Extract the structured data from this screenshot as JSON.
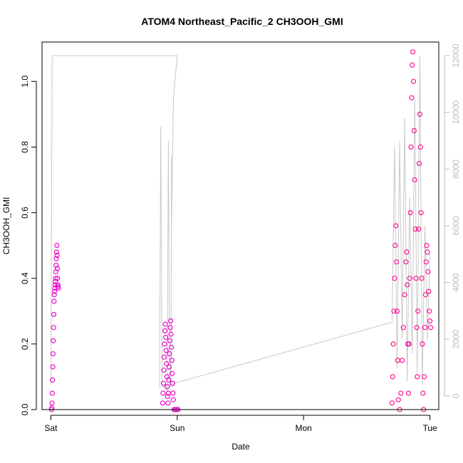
{
  "chart_data": {
    "type": "scatter",
    "title": "ATOM4 Northeast_Pacific_2 CH3OOH_GMI",
    "xlabel": "Date",
    "ylabel": "CH3OOH_GMI",
    "x_tick_labels": [
      "Sat",
      "Sun",
      "Mon",
      "Tue"
    ],
    "xlim_days": [
      -0.07,
      3.07
    ],
    "ylim": [
      0,
      1.12
    ],
    "y_ticks": [
      "0.0",
      "0.2",
      "0.4",
      "0.6",
      "0.8",
      "1.0"
    ],
    "y2_ticks": [
      "0",
      "2000",
      "4000",
      "6000",
      "8000",
      "10000",
      "12000"
    ],
    "y2lim": [
      -480,
      12480
    ],
    "grid": false,
    "colors": {
      "points": "#ff1493",
      "points_alt": "#e60dc8",
      "altitude_line": "#c8c8c8",
      "frame": "#000000"
    },
    "series": [
      {
        "marker": "open-circle",
        "points": [
          [
            0.005,
            0.0
          ],
          [
            0.007,
            0.005
          ],
          [
            0.009,
            0.02
          ],
          [
            0.011,
            0.05
          ],
          [
            0.013,
            0.09
          ],
          [
            0.015,
            0.13
          ],
          [
            0.017,
            0.17
          ],
          [
            0.019,
            0.21
          ],
          [
            0.021,
            0.25
          ],
          [
            0.023,
            0.29
          ],
          [
            0.025,
            0.33
          ],
          [
            0.027,
            0.35
          ],
          [
            0.029,
            0.36
          ],
          [
            0.031,
            0.37
          ],
          [
            0.033,
            0.38
          ],
          [
            0.035,
            0.39
          ],
          [
            0.037,
            0.4
          ],
          [
            0.039,
            0.42
          ],
          [
            0.041,
            0.44
          ],
          [
            0.043,
            0.46
          ],
          [
            0.045,
            0.48
          ],
          [
            0.047,
            0.5
          ],
          [
            0.049,
            0.47
          ],
          [
            0.051,
            0.43
          ],
          [
            0.053,
            0.4
          ],
          [
            0.055,
            0.38
          ],
          [
            0.057,
            0.375
          ],
          [
            0.059,
            0.37
          ],
          [
            0.885,
            0.02
          ],
          [
            0.888,
            0.05
          ],
          [
            0.891,
            0.08
          ],
          [
            0.894,
            0.12
          ],
          [
            0.897,
            0.16
          ],
          [
            0.9,
            0.2
          ],
          [
            0.903,
            0.24
          ],
          [
            0.906,
            0.26
          ],
          [
            0.909,
            0.22
          ],
          [
            0.912,
            0.18
          ],
          [
            0.915,
            0.14
          ],
          [
            0.918,
            0.1
          ],
          [
            0.921,
            0.07
          ],
          [
            0.924,
            0.04
          ],
          [
            0.927,
            0.02
          ],
          [
            0.93,
            0.05
          ],
          [
            0.933,
            0.09
          ],
          [
            0.936,
            0.13
          ],
          [
            0.939,
            0.17
          ],
          [
            0.942,
            0.21
          ],
          [
            0.945,
            0.25
          ],
          [
            0.948,
            0.27
          ],
          [
            0.951,
            0.23
          ],
          [
            0.954,
            0.19
          ],
          [
            0.957,
            0.15
          ],
          [
            0.96,
            0.11
          ],
          [
            0.963,
            0.08
          ],
          [
            0.966,
            0.05
          ],
          [
            0.969,
            0.03
          ],
          [
            0.975,
            0.0
          ],
          [
            0.985,
            0.0
          ],
          [
            0.995,
            0.0
          ],
          [
            1.005,
            0.0
          ],
          [
            2.7,
            0.02
          ],
          [
            2.705,
            0.1
          ],
          [
            2.71,
            0.2
          ],
          [
            2.715,
            0.3
          ],
          [
            2.72,
            0.4
          ],
          [
            2.725,
            0.5
          ],
          [
            2.73,
            0.56
          ],
          [
            2.735,
            0.45
          ],
          [
            2.74,
            0.3
          ],
          [
            2.745,
            0.15
          ],
          [
            2.75,
            0.03
          ],
          [
            2.76,
            0.0
          ],
          [
            2.77,
            0.05
          ],
          [
            2.78,
            0.15
          ],
          [
            2.79,
            0.25
          ],
          [
            2.8,
            0.35
          ],
          [
            2.81,
            0.45
          ],
          [
            2.815,
            0.48
          ],
          [
            2.82,
            0.38
          ],
          [
            2.825,
            0.2
          ],
          [
            2.83,
            0.05
          ],
          [
            2.835,
            0.2
          ],
          [
            2.84,
            0.4
          ],
          [
            2.845,
            0.6
          ],
          [
            2.85,
            0.8
          ],
          [
            2.855,
            0.95
          ],
          [
            2.86,
            1.05
          ],
          [
            2.865,
            1.09
          ],
          [
            2.87,
            1.0
          ],
          [
            2.875,
            0.85
          ],
          [
            2.88,
            0.7
          ],
          [
            2.885,
            0.55
          ],
          [
            2.89,
            0.4
          ],
          [
            2.895,
            0.25
          ],
          [
            2.9,
            0.1
          ],
          [
            2.905,
            0.3
          ],
          [
            2.91,
            0.55
          ],
          [
            2.915,
            0.75
          ],
          [
            2.92,
            0.9
          ],
          [
            2.925,
            0.8
          ],
          [
            2.93,
            0.6
          ],
          [
            2.935,
            0.4
          ],
          [
            2.94,
            0.2
          ],
          [
            2.945,
            0.05
          ],
          [
            2.95,
            0.0
          ],
          [
            2.955,
            0.1
          ],
          [
            2.96,
            0.25
          ],
          [
            2.965,
            0.35
          ],
          [
            2.97,
            0.45
          ],
          [
            2.975,
            0.5
          ],
          [
            2.98,
            0.48
          ],
          [
            2.985,
            0.42
          ],
          [
            2.99,
            0.36
          ],
          [
            2.995,
            0.3
          ],
          [
            3.0,
            0.27
          ],
          [
            3.005,
            0.25
          ]
        ]
      }
    ],
    "altitude_line": {
      "axis": "right",
      "points": [
        [
          0.0,
          400
        ],
        [
          0.01,
          12000
        ],
        [
          1.0,
          12000
        ],
        [
          0.98,
          11000
        ],
        [
          0.97,
          10500
        ],
        [
          0.955,
          6000
        ],
        [
          0.955,
          8500
        ],
        [
          0.95,
          300
        ],
        [
          0.94,
          500
        ],
        [
          0.93,
          9000
        ],
        [
          0.92,
          200
        ],
        [
          0.88,
          400
        ],
        [
          0.87,
          9500
        ],
        [
          0.86,
          300
        ],
        [
          2.7,
          2600
        ],
        [
          2.72,
          8800
        ],
        [
          2.74,
          1000
        ],
        [
          2.76,
          9000
        ],
        [
          2.78,
          2000
        ],
        [
          2.8,
          9800
        ],
        [
          2.82,
          500
        ],
        [
          2.84,
          7000
        ],
        [
          2.86,
          1500
        ],
        [
          2.88,
          10500
        ],
        [
          2.9,
          800
        ],
        [
          2.92,
          12000
        ],
        [
          2.94,
          400
        ],
        [
          2.96,
          6000
        ],
        [
          2.98,
          2000
        ],
        [
          3.0,
          5000
        ]
      ]
    }
  }
}
